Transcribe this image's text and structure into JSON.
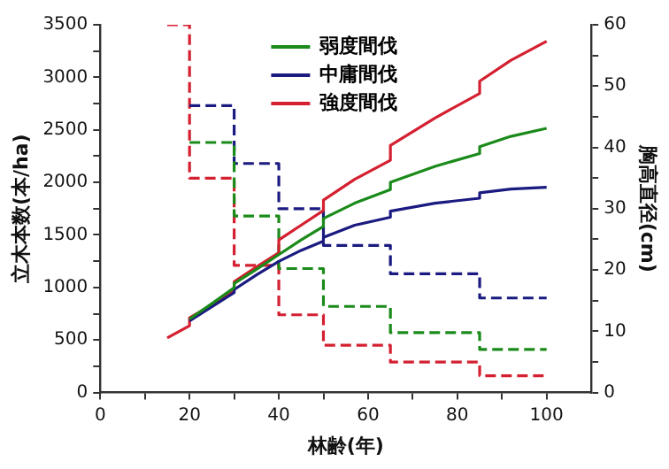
{
  "chart_data": {
    "type": "line",
    "xlabel": "林齢(年)",
    "ylabel": "立木本数(本/ha)",
    "y2label": "胸高直径(cm)",
    "xlim": [
      0,
      110
    ],
    "xticks": [
      0,
      {
        "value": 10,
        "label": null
      },
      20,
      {
        "value": 30,
        "label": null
      },
      40,
      {
        "value": 50,
        "label": null
      },
      60,
      {
        "value": 70,
        "label": null
      },
      80,
      {
        "value": 90,
        "label": null
      },
      100
    ],
    "ylim": [
      0,
      3500
    ],
    "yticks": [
      0,
      {
        "value": 250,
        "label": null
      },
      500,
      {
        "value": 750,
        "label": null
      },
      1000,
      {
        "value": 1250,
        "label": null
      },
      1500,
      {
        "value": 1750,
        "label": null
      },
      2000,
      {
        "value": 2250,
        "label": null
      },
      2500,
      {
        "value": 2750,
        "label": null
      },
      3000,
      {
        "value": 3250,
        "label": null
      },
      3500
    ],
    "y2lim": [
      0,
      60
    ],
    "y2ticks": [
      0,
      {
        "value": 5,
        "label": null
      },
      10,
      {
        "value": 15,
        "label": null
      },
      20,
      {
        "value": 25,
        "label": null
      },
      30,
      {
        "value": 35,
        "label": null
      },
      40,
      {
        "value": 45,
        "label": null
      },
      50,
      {
        "value": 55,
        "label": null
      },
      60
    ],
    "grid": false,
    "legend": "top",
    "marker": "none",
    "series": [
      {
        "name": "弱度間伐",
        "color": "#1a8a1a",
        "axis": "y2",
        "line_style": "solid",
        "x": [
          20,
          25,
          30,
          30,
          35,
          40,
          45,
          50,
          50,
          57,
          65,
          65,
          75,
          85,
          85,
          92,
          100
        ],
        "values": [
          12.0,
          14.5,
          17.1,
          17.8,
          20.1,
          22.5,
          24.9,
          27.1,
          28.4,
          30.9,
          33.1,
          34.3,
          36.9,
          39.0,
          40.1,
          41.8,
          43.1
        ]
      },
      {
        "name": "中庸間伐",
        "color": "#1a1a80",
        "axis": "y2",
        "line_style": "solid",
        "x": [
          20,
          25,
          30,
          30,
          35,
          40,
          45,
          50,
          50,
          57,
          65,
          65,
          75,
          85,
          85,
          92,
          100
        ],
        "values": [
          11.7,
          14.0,
          16.3,
          16.8,
          19.2,
          21.4,
          23.2,
          24.7,
          25.3,
          27.3,
          28.6,
          29.6,
          30.9,
          31.7,
          32.6,
          33.2,
          33.5
        ]
      },
      {
        "name": "強度間伐",
        "color": "#d42030",
        "axis": "y2",
        "line_style": "solid",
        "x": [
          15,
          20,
          20,
          25,
          30,
          30,
          35,
          40,
          40,
          45,
          50,
          50,
          57,
          65,
          65,
          75,
          85,
          85,
          92,
          100
        ],
        "values": [
          8.9,
          10.9,
          12.2,
          14.3,
          16.6,
          18.1,
          20.5,
          22.8,
          24.9,
          27.3,
          29.7,
          31.4,
          34.8,
          37.9,
          40.3,
          44.8,
          48.8,
          50.8,
          54.2,
          57.3
        ]
      },
      {
        "type": "step",
        "color": "#1a8a1a",
        "line_style": "dashed",
        "x": [
          20,
          30,
          40,
          50,
          65,
          85,
          100
        ],
        "values": [
          2380,
          1680,
          1180,
          820,
          570,
          410,
          410
        ]
      },
      {
        "type": "step",
        "color": "#1a1a80",
        "line_style": "dashed",
        "x": [
          20,
          30,
          40,
          50,
          65,
          85,
          100
        ],
        "values": [
          2730,
          2180,
          1750,
          1400,
          1130,
          900,
          900
        ]
      },
      {
        "type": "step",
        "color": "#d42030",
        "line_style": "dashed",
        "x": [
          15,
          20,
          30,
          40,
          50,
          65,
          85,
          100
        ],
        "values": [
          3500,
          2040,
          1210,
          740,
          450,
          290,
          160,
          160
        ]
      }
    ]
  }
}
